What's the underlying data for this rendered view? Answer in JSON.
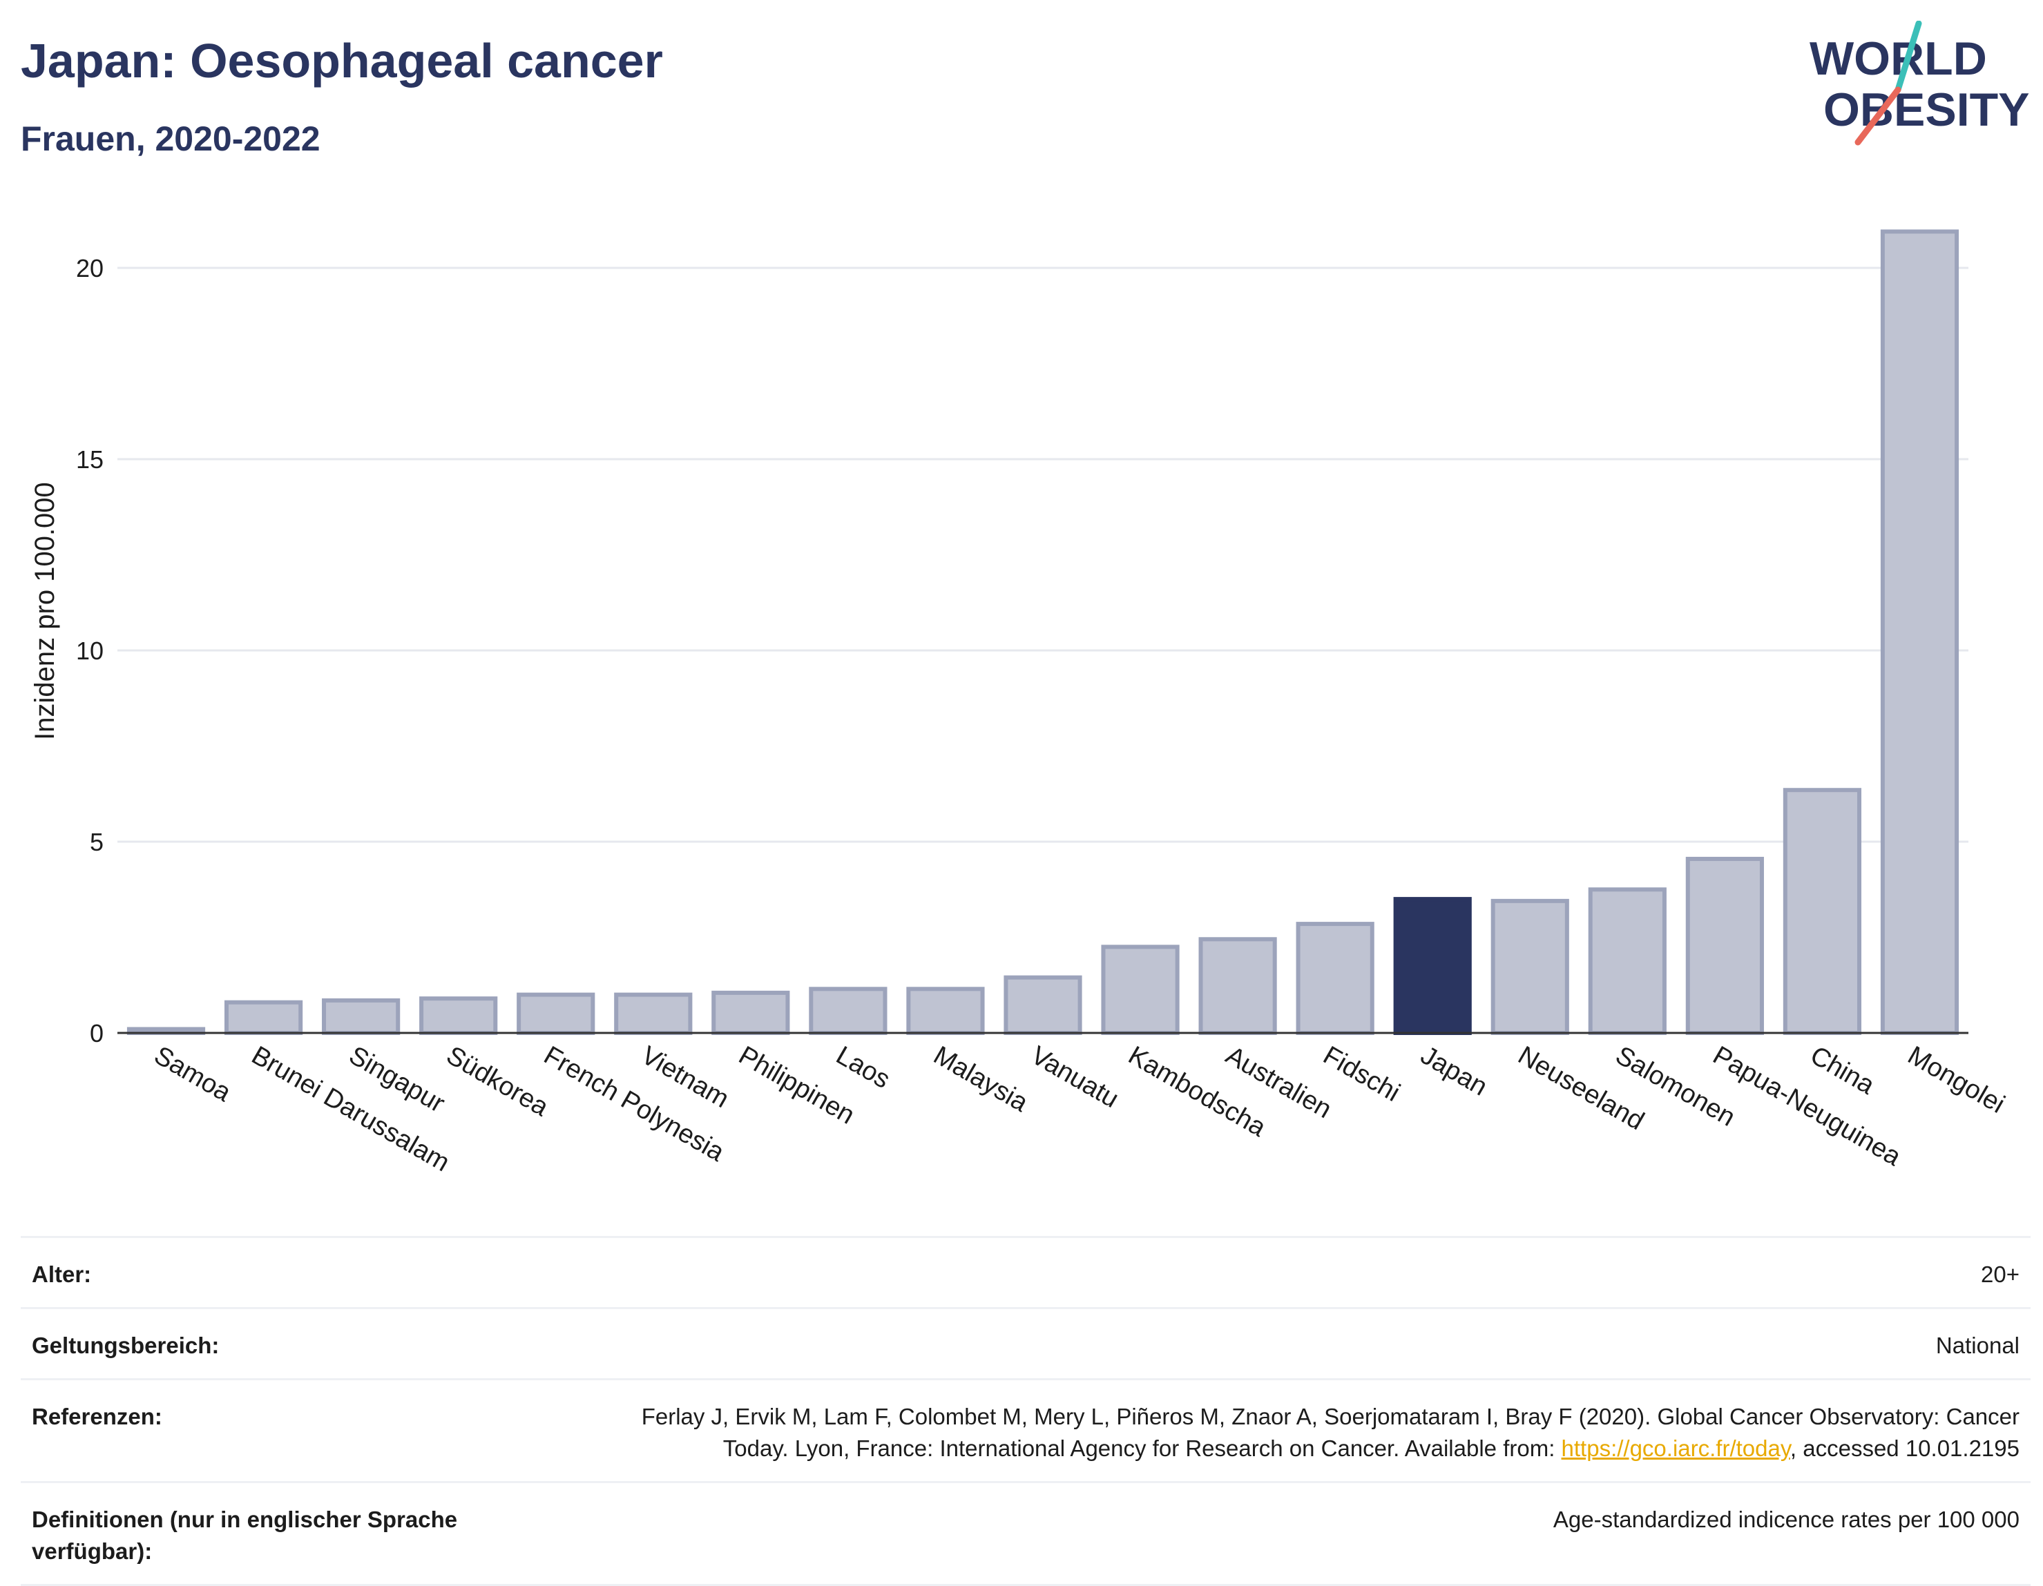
{
  "header": {
    "title": "Japan: Oesophageal cancer",
    "subtitle": "Frauen, 2020-2022"
  },
  "logo": {
    "line1": "WORLD",
    "line2": "OBESITY",
    "accent_teal": "#3bbfb8",
    "accent_coral": "#e8685a",
    "text_color": "#2a3560"
  },
  "chart_data": {
    "type": "bar",
    "title": "Japan: Oesophageal cancer",
    "subtitle": "Frauen, 2020-2022",
    "ylabel": "Inzidenz pro 100.000",
    "xlabel": "",
    "ylim": [
      0,
      22
    ],
    "yticks": [
      0,
      5,
      10,
      15,
      20
    ],
    "grid": true,
    "highlight": "Japan",
    "highlight_color": "#2a3560",
    "bar_color": "#bfc3d2",
    "bar_edge_color": "#9ca3bb",
    "categories": [
      "Samoa",
      "Brunei Darussalam",
      "Singapur",
      "Südkorea",
      "French Polynesia",
      "Vietnam",
      "Philippinen",
      "Laos",
      "Malaysia",
      "Vanuatu",
      "Kambodscha",
      "Australien",
      "Fidschi",
      "Japan",
      "Neuseeland",
      "Salomonen",
      "Papua-Neuguinea",
      "China",
      "Mongolei"
    ],
    "values": [
      0.1,
      0.8,
      0.85,
      0.9,
      1.0,
      1.0,
      1.05,
      1.15,
      1.15,
      1.45,
      2.25,
      2.45,
      2.85,
      3.5,
      3.45,
      3.75,
      4.55,
      6.35,
      20.95
    ]
  },
  "info": {
    "rows": [
      {
        "label": "Alter:",
        "value": "20+"
      },
      {
        "label": "Geltungsbereich:",
        "value": "National"
      }
    ],
    "references": {
      "label": "Referenzen:",
      "text_line1": "Ferlay J, Ervik M, Lam F, Colombet M, Mery L, Piñeros M, Znaor A, Soerjomataram I, Bray F (2020). Global Cancer Observatory: Cancer",
      "text_line2_before": "Today. Lyon, France: International Agency for Research on Cancer. Available from: ",
      "link": "https://gco.iarc.fr/today",
      "text_line2_after": ", accessed 10.01.2195"
    },
    "definitions": {
      "label": "Definitionen (nur in englischer Sprache verfügbar):",
      "value": "Age-standardized indicence rates per 100 000"
    }
  }
}
